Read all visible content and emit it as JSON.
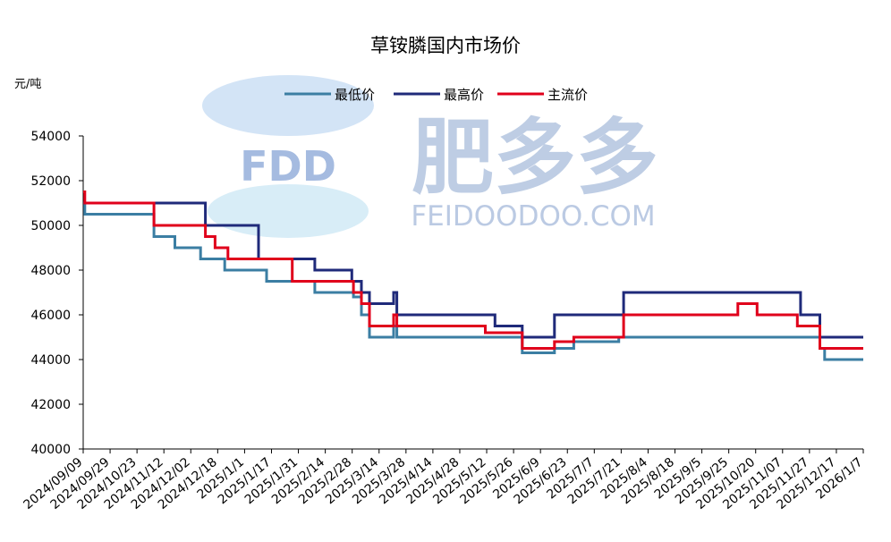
{
  "watermark": {
    "logo_text": "FDD",
    "brand_text": "肥多多",
    "url_text": "FEIDOODOO.COM"
  },
  "chart_data": {
    "type": "line",
    "title": "草铵膦国内市场价",
    "ylabel": "元/吨",
    "xlabel": "",
    "ylim": [
      40000,
      54000
    ],
    "yticks": [
      "40000",
      "42000",
      "44000",
      "46000",
      "48000",
      "50000",
      "52000",
      "54000"
    ],
    "x_tick_labels": [
      "2024/09/09",
      "2024/09/29",
      "2024/10/23",
      "2024/11/12",
      "2024/12/02",
      "2024/12/18",
      "2025/1/1",
      "2025/1/17",
      "2025/1/31",
      "2025/2/14",
      "2025/2/28",
      "2025/3/14",
      "2025/3/28",
      "2025/4/14",
      "2025/4/28",
      "2025/5/12",
      "2025/5/26",
      "2025/6/9",
      "2025/6/23",
      "2025/7/7",
      "2025/7/21",
      "2025/8/4",
      "2025/8/18",
      "2025/9/5",
      "2025/9/25",
      "2025/10/20",
      "2025/11/07",
      "2025/11/27",
      "2025/12/17",
      "2026/1/7"
    ],
    "x_range": [
      "2024/09/09",
      "2026/1/7"
    ],
    "legend_position": "top-center",
    "grid": false,
    "series": [
      {
        "name": "最低价",
        "color": "#3b7ea3",
        "step_points": [
          [
            "2024/09/09",
            51000
          ],
          [
            "2024/09/10",
            50500
          ],
          [
            "2024/10/23",
            49500
          ],
          [
            "2024/11/05",
            49000
          ],
          [
            "2024/11/21",
            48500
          ],
          [
            "2024/12/06",
            48000
          ],
          [
            "2025/1/1",
            47500
          ],
          [
            "2025/1/31",
            47000
          ],
          [
            "2025/2/24",
            46800
          ],
          [
            "2025/3/1",
            46000
          ],
          [
            "2025/3/6",
            45000
          ],
          [
            "2025/3/21",
            45500
          ],
          [
            "2025/3/23",
            45000
          ],
          [
            "2025/6/9",
            44300
          ],
          [
            "2025/6/29",
            44500
          ],
          [
            "2025/7/11",
            44800
          ],
          [
            "2025/8/8",
            45000
          ],
          [
            "2025/12/11",
            44500
          ],
          [
            "2025/12/14",
            44000
          ],
          [
            "2026/1/7",
            44000
          ]
        ]
      },
      {
        "name": "最高价",
        "color": "#1f2a7a",
        "step_points": [
          [
            "2024/09/09",
            51000
          ],
          [
            "2024/11/24",
            50000
          ],
          [
            "2024/12/27",
            48500
          ],
          [
            "2025/1/31",
            48000
          ],
          [
            "2025/2/23",
            47500
          ],
          [
            "2025/3/1",
            47000
          ],
          [
            "2025/3/6",
            46500
          ],
          [
            "2025/3/21",
            47000
          ],
          [
            "2025/3/23",
            46000
          ],
          [
            "2025/5/23",
            45500
          ],
          [
            "2025/6/9",
            45000
          ],
          [
            "2025/6/29",
            46000
          ],
          [
            "2025/8/11",
            47000
          ],
          [
            "2025/11/29",
            46000
          ],
          [
            "2025/12/11",
            45000
          ],
          [
            "2026/1/7",
            45000
          ]
        ]
      },
      {
        "name": "主流价",
        "color": "#e0001b",
        "step_points": [
          [
            "2024/09/09",
            51500
          ],
          [
            "2024/09/10",
            51000
          ],
          [
            "2024/10/23",
            50000
          ],
          [
            "2024/11/24",
            49500
          ],
          [
            "2024/11/30",
            49000
          ],
          [
            "2024/12/08",
            48500
          ],
          [
            "2025/1/17",
            47500
          ],
          [
            "2025/2/24",
            47000
          ],
          [
            "2025/3/1",
            46500
          ],
          [
            "2025/3/6",
            45500
          ],
          [
            "2025/3/21",
            46000
          ],
          [
            "2025/3/23",
            45500
          ],
          [
            "2025/5/17",
            45200
          ],
          [
            "2025/6/9",
            44500
          ],
          [
            "2025/6/29",
            44800
          ],
          [
            "2025/7/11",
            45000
          ],
          [
            "2025/8/11",
            46000
          ],
          [
            "2025/10/21",
            46500
          ],
          [
            "2025/11/02",
            46000
          ],
          [
            "2025/11/27",
            45500
          ],
          [
            "2025/12/11",
            44500
          ],
          [
            "2026/1/7",
            44500
          ]
        ]
      }
    ]
  }
}
